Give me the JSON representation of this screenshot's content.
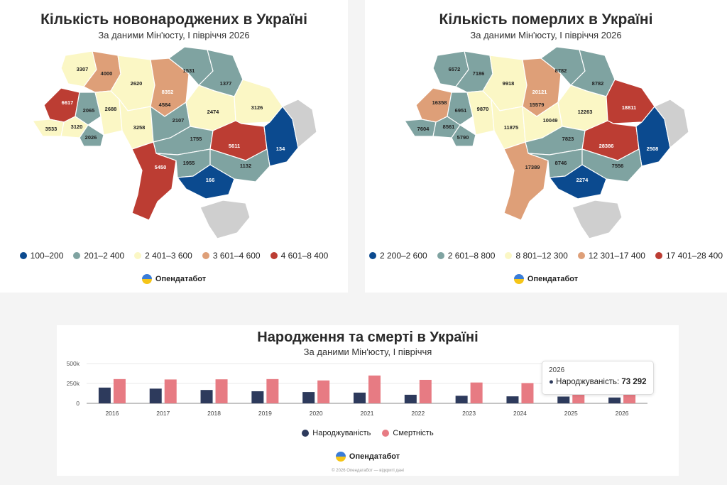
{
  "left_map": {
    "title": "Кількість новонароджених в Україні",
    "subtitle": "За даними Мін'юсту, І півріччя 2026",
    "legend": [
      {
        "label": "100–200",
        "color": "#0b4a8f"
      },
      {
        "label": "201–2 400",
        "color": "#7fa3a1"
      },
      {
        "label": "2 401–3 600",
        "color": "#fbf7c5"
      },
      {
        "label": "3 601–4 600",
        "color": "#de9f78"
      },
      {
        "label": "4 601–8 400",
        "color": "#bc3d33"
      }
    ],
    "regions": [
      {
        "name": "volyn",
        "value": "3307",
        "class": 3
      },
      {
        "name": "rivne",
        "value": "4000",
        "class": 4
      },
      {
        "name": "zhytomyr",
        "value": "2620",
        "class": 3
      },
      {
        "name": "kyiv-city",
        "value": "8352",
        "class": 5
      },
      {
        "name": "kyiv-oblast",
        "value": "4584",
        "class": 4
      },
      {
        "name": "chernihiv",
        "value": "1531",
        "class": 2
      },
      {
        "name": "sumy",
        "value": "1377",
        "class": 2
      },
      {
        "name": "lviv",
        "value": "6617",
        "class": 5
      },
      {
        "name": "ternopil",
        "value": "2065",
        "class": 2
      },
      {
        "name": "khmelnytskyi",
        "value": "2688",
        "class": 3
      },
      {
        "name": "vinnytsia",
        "value": "3258",
        "class": 3
      },
      {
        "name": "cherkasy",
        "value": "2107",
        "class": 2
      },
      {
        "name": "poltava",
        "value": "2474",
        "class": 3
      },
      {
        "name": "kharkiv",
        "value": "3126",
        "class": 3
      },
      {
        "name": "zakarpattia",
        "value": "3533",
        "class": 3
      },
      {
        "name": "ivano-frankivsk",
        "value": "3120",
        "class": 3
      },
      {
        "name": "chernivtsi",
        "value": "2026",
        "class": 2
      },
      {
        "name": "kirovohrad",
        "value": "1755",
        "class": 2
      },
      {
        "name": "dnipro",
        "value": "5611",
        "class": 5
      },
      {
        "name": "donetsk",
        "value": "134",
        "class": 1
      },
      {
        "name": "odesa",
        "value": "5450",
        "class": 5
      },
      {
        "name": "mykolaiv",
        "value": "1955",
        "class": 2
      },
      {
        "name": "zaporizhzhia",
        "value": "1132",
        "class": 2
      },
      {
        "name": "kherson",
        "value": "166",
        "class": 1
      },
      {
        "name": "luhansk",
        "value": "",
        "class": 0
      },
      {
        "name": "crimea",
        "value": "",
        "class": 0
      }
    ],
    "brand": "Опендатабот"
  },
  "right_map": {
    "title": "Кількість померлих в Україні",
    "subtitle": "За даними Мін'юсту, І півріччя 2026",
    "legend": [
      {
        "label": "2 200–2 600",
        "color": "#0b4a8f"
      },
      {
        "label": "2 601–8 800",
        "color": "#7fa3a1"
      },
      {
        "label": "8 801–12 300",
        "color": "#fbf7c5"
      },
      {
        "label": "12 301–17 400",
        "color": "#de9f78"
      },
      {
        "label": "17 401–28 400",
        "color": "#bc3d33"
      }
    ],
    "regions": [
      {
        "name": "volyn",
        "value": "6572",
        "class": 2
      },
      {
        "name": "rivne",
        "value": "7186",
        "class": 2
      },
      {
        "name": "zhytomyr",
        "value": "9918",
        "class": 3
      },
      {
        "name": "kyiv-city",
        "value": "20121",
        "class": 5
      },
      {
        "name": "kyiv-oblast",
        "value": "15579",
        "class": 4
      },
      {
        "name": "chernihiv",
        "value": "8782",
        "class": 2
      },
      {
        "name": "sumy",
        "value": "8782",
        "class": 2
      },
      {
        "name": "lviv",
        "value": "16358",
        "class": 4
      },
      {
        "name": "ternopil",
        "value": "6951",
        "class": 2
      },
      {
        "name": "khmelnytskyi",
        "value": "9870",
        "class": 3
      },
      {
        "name": "vinnytsia",
        "value": "11875",
        "class": 3
      },
      {
        "name": "cherkasy",
        "value": "10049",
        "class": 3
      },
      {
        "name": "poltava",
        "value": "12263",
        "class": 3
      },
      {
        "name": "kharkiv",
        "value": "18811",
        "class": 5
      },
      {
        "name": "zakarpattia",
        "value": "7604",
        "class": 2
      },
      {
        "name": "ivano-frankivsk",
        "value": "8561",
        "class": 2
      },
      {
        "name": "chernivtsi",
        "value": "5790",
        "class": 2
      },
      {
        "name": "kirovohrad",
        "value": "7823",
        "class": 2
      },
      {
        "name": "dnipro",
        "value": "28386",
        "class": 5
      },
      {
        "name": "donetsk",
        "value": "2508",
        "class": 1
      },
      {
        "name": "odesa",
        "value": "17389",
        "class": 4
      },
      {
        "name": "mykolaiv",
        "value": "8746",
        "class": 2
      },
      {
        "name": "zaporizhzhia",
        "value": "7556",
        "class": 2
      },
      {
        "name": "kherson",
        "value": "2274",
        "class": 1
      },
      {
        "name": "luhansk",
        "value": "",
        "class": 0
      },
      {
        "name": "crimea",
        "value": "",
        "class": 0
      }
    ],
    "brand": "Опендатабот"
  },
  "colors": {
    "class_0": "#cfcfcf",
    "class_1": "#0b4a8f",
    "class_2": "#7fa3a1",
    "class_3": "#fbf7c5",
    "class_4": "#de9f78",
    "class_5": "#bc3d33",
    "births": "#2d3a5c",
    "deaths": "#e77b83"
  },
  "chart_data": {
    "type": "bar",
    "title": "Народження та смерті в Україні",
    "subtitle": "За даними Мін'юсту, І півріччя",
    "categories": [
      "2016",
      "2017",
      "2018",
      "2019",
      "2020",
      "2021",
      "2022",
      "2023",
      "2024",
      "2025",
      "2026"
    ],
    "series": [
      {
        "name": "Народжуваність",
        "values": [
          198000,
          185000,
          168000,
          152000,
          142000,
          135000,
          108000,
          95000,
          88000,
          85000,
          73292
        ]
      },
      {
        "name": "Смертність",
        "values": [
          305000,
          300000,
          302000,
          305000,
          288000,
          350000,
          295000,
          262000,
          255000,
          112000,
          112000
        ]
      }
    ],
    "yticks": [
      "0",
      "250k",
      "500k"
    ],
    "ylim": [
      0,
      500000
    ],
    "legend_position": "bottom",
    "tooltip": {
      "year": "2026",
      "series": "Народжуваність:",
      "value": "73 292"
    }
  },
  "bottom": {
    "brand": "Опендатабот",
    "footer": "© 2026 Опендатабот — відкриті дані"
  }
}
